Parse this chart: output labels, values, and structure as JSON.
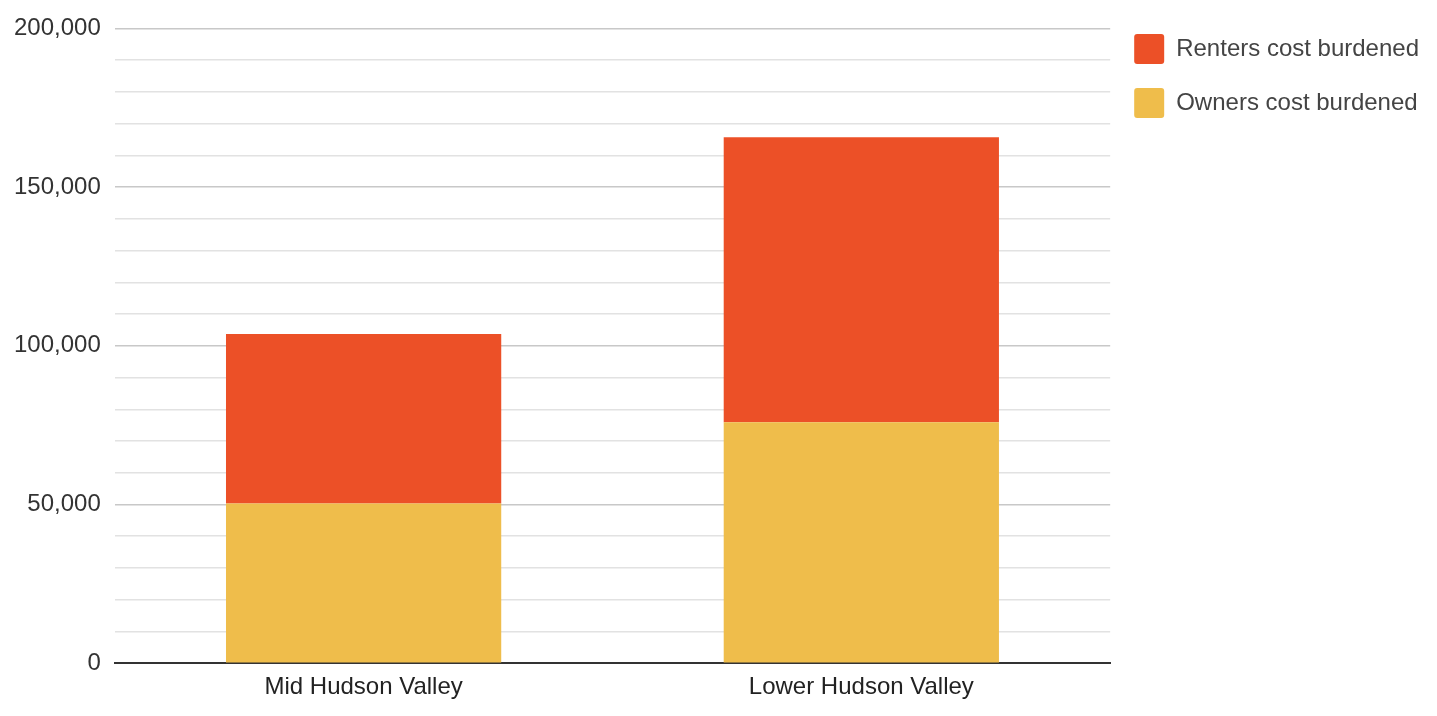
{
  "chart_data": {
    "type": "bar",
    "stacked": true,
    "categories": [
      "Mid Hudson Valley",
      "Lower Hudson Valley"
    ],
    "series": [
      {
        "name": "Owners cost burdened",
        "color": "#efbd4b",
        "values": [
          50300,
          75900
        ]
      },
      {
        "name": "Renters cost burdened",
        "color": "#ec5027",
        "values": [
          53400,
          89800
        ]
      }
    ],
    "ylim": [
      0,
      200000
    ],
    "yticks": [
      0,
      {
        "value": 10000,
        "label": null
      },
      {
        "value": 20000,
        "label": null
      },
      {
        "value": 30000,
        "label": null
      },
      {
        "value": 40000,
        "label": null
      },
      {
        "value": 50000,
        "label": "50,000"
      },
      {
        "value": 60000,
        "label": null
      },
      {
        "value": 70000,
        "label": null
      },
      {
        "value": 80000,
        "label": null
      },
      {
        "value": 90000,
        "label": null
      },
      {
        "value": 100000,
        "label": "100,000"
      },
      {
        "value": 110000,
        "label": null
      },
      {
        "value": 120000,
        "label": null
      },
      {
        "value": 130000,
        "label": null
      },
      {
        "value": 140000,
        "label": null
      },
      {
        "value": 150000,
        "label": "150,000"
      },
      {
        "value": 160000,
        "label": null
      },
      {
        "value": 170000,
        "label": null
      },
      {
        "value": 180000,
        "label": null
      },
      {
        "value": 190000,
        "label": null
      },
      {
        "value": 200000,
        "label": "200,000"
      }
    ],
    "grid": "y",
    "legend": "top right"
  }
}
